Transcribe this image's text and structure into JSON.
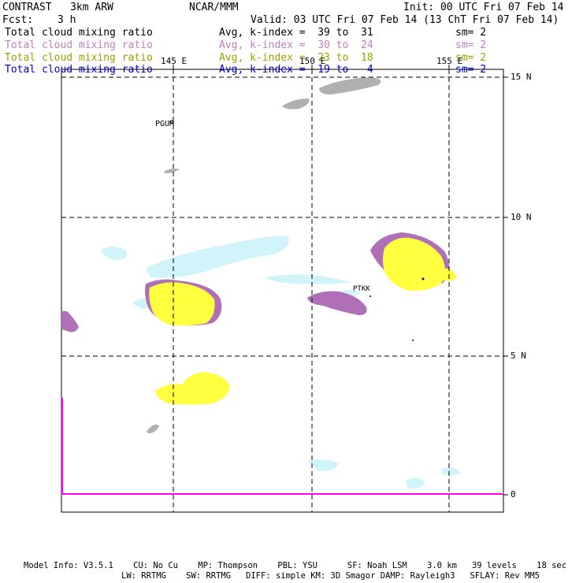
{
  "header": {
    "model": "CONTRAST   3km ARW",
    "center": "NCAR/MMM",
    "init": "Init: 00 UTC Fri 07 Feb 14",
    "fcst_label": "Fcst:",
    "fcst_value": "3 h",
    "valid": "Valid: 03 UTC Fri 07 Feb 14 (13 ChT Fri 07 Feb 14)"
  },
  "legend": [
    {
      "field": "Total cloud mixing ratio",
      "range": "Avg, k-index =  39 to  31",
      "sm": "sm= 2",
      "color": "#000000"
    },
    {
      "field": "Total cloud mixing ratio",
      "range": "Avg, k-index =  30 to  24",
      "sm": "sm= 2",
      "color": "#c080c0"
    },
    {
      "field": "Total cloud mixing ratio",
      "range": "Avg, k-index =  23 to  18",
      "sm": "sm= 2",
      "color": "#a0a000"
    },
    {
      "field": "Total cloud mixing ratio",
      "range": "Avg, k-index =  19 to   4",
      "sm": "sm= 2",
      "color": "#0000c0"
    }
  ],
  "map": {
    "lon_labels": [
      "145 E",
      "150 E",
      "155 E"
    ],
    "lat_labels": [
      "15 N",
      "10 N",
      "5 N",
      "0"
    ],
    "stations": [
      "PGUM",
      "PTKK"
    ],
    "colors": {
      "gray": "#b0b0b0",
      "purple": "#b070b8",
      "yellow": "#ffff40",
      "cyan": "#d0f4fa",
      "magenta": "#ff00ff"
    }
  },
  "footer": {
    "line1": "Model Info: V3.5.1    CU: No Cu    MP: Thompson    PBL: YSU      SF: Noah LSM    3.0 km   39 levels    18 sec",
    "line2": "LW: RRTMG    SW: RRTMG   DIFF: simple KM: 3D Smagor DAMP: Rayleigh3   SFLAY: Rev MM5"
  }
}
